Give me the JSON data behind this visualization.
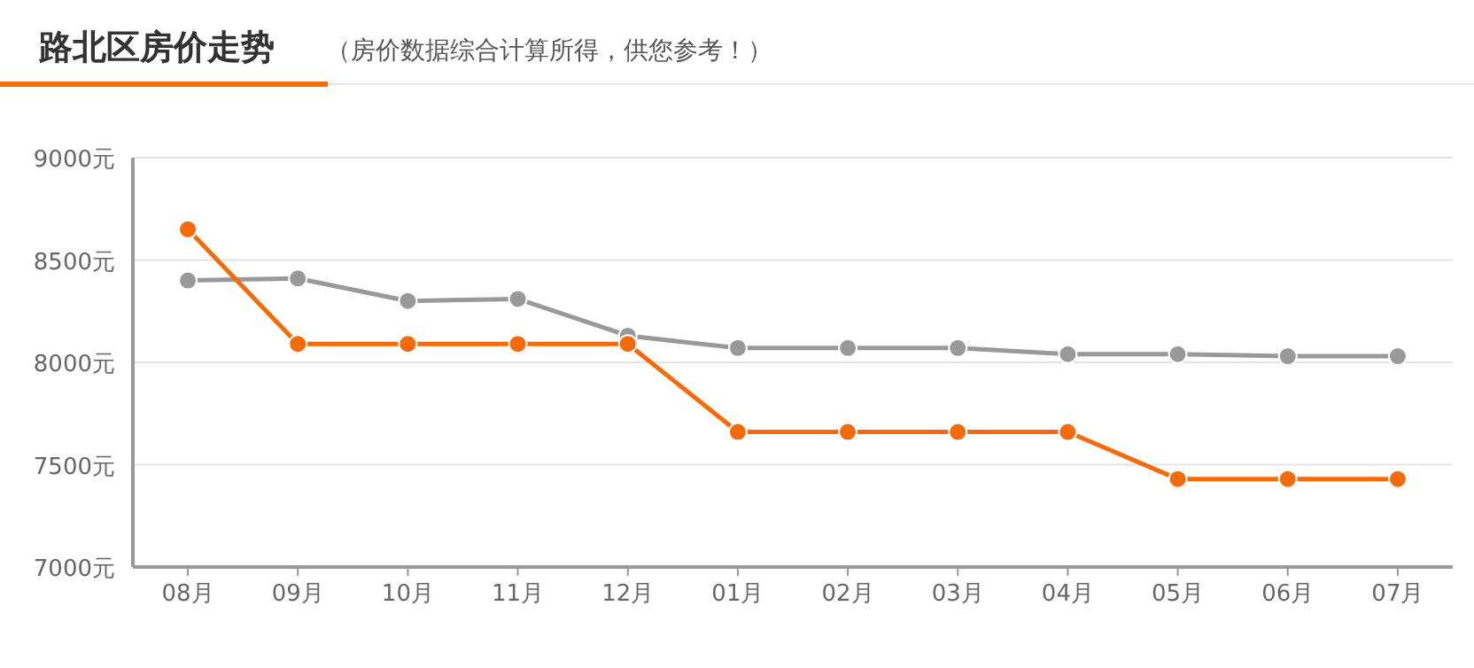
{
  "chart_data": {
    "type": "line",
    "title": "路北区房价走势",
    "subtitle": "（房价数据综合计算所得，供您参考！）",
    "categories": [
      "08月",
      "09月",
      "10月",
      "11月",
      "12月",
      "01月",
      "02月",
      "03月",
      "04月",
      "05月",
      "06月",
      "07月"
    ],
    "series": [
      {
        "color": "#999999",
        "values": [
          8400,
          8410,
          8300,
          8310,
          8130,
          8070,
          8070,
          8070,
          8040,
          8040,
          8030,
          8030
        ]
      },
      {
        "color": "#f56a0a",
        "values": [
          8650,
          8090,
          8090,
          8090,
          8090,
          7660,
          7660,
          7660,
          7660,
          7430,
          7430,
          7430
        ]
      }
    ],
    "ylim": [
      7000,
      9000
    ],
    "yticks": [
      {
        "value": 7000,
        "label": "7000元"
      },
      {
        "value": 7500,
        "label": "7500元"
      },
      {
        "value": 8000,
        "label": "8000元"
      },
      {
        "value": 8500,
        "label": "8500元"
      },
      {
        "value": 9000,
        "label": "9000元"
      }
    ],
    "grid": "y",
    "marker": "circle",
    "line_style": "solid"
  }
}
